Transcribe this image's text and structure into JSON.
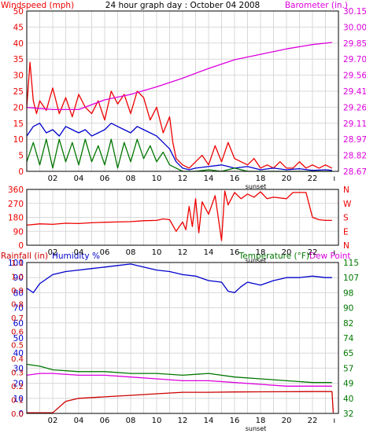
{
  "colors": {
    "red": "#ee0000",
    "blue": "#0000cc",
    "green": "#007700",
    "magenta": "#dd00dd",
    "dark_red": "#cc0000",
    "grid": "#d8d8d8",
    "frame": "#000000"
  },
  "chart_data": [
    {
      "type": "line",
      "title": "24 hour graph day : October 04 2008",
      "y_left_label": "Windspeed (mph)",
      "y_right_label": "Barometer (in.)",
      "y_left_ticks": [
        "0",
        "5",
        "10",
        "15",
        "20",
        "25",
        "30",
        "35",
        "40",
        "45",
        "50"
      ],
      "y_right_ticks": [
        "28.67",
        "28.82",
        "28.97",
        "29.11",
        "29.26",
        "29.41",
        "29.56",
        "29.70",
        "29.85",
        "30.00",
        "30.15"
      ],
      "ylim_left": [
        0,
        50
      ],
      "ylim_right": [
        28.67,
        30.15
      ],
      "x_ticks": [
        "02",
        "04",
        "06",
        "08",
        "10",
        "12",
        "14",
        "16",
        "18",
        "20",
        "22"
      ],
      "x_marker": "sunset",
      "series": [
        {
          "color": "red",
          "axis": "left",
          "x": [
            0,
            0.25,
            0.5,
            0.75,
            1,
            1.5,
            2,
            2.5,
            3,
            3.5,
            4,
            4.5,
            5,
            5.5,
            6,
            6.5,
            7,
            7.5,
            8,
            8.5,
            9,
            9.5,
            10,
            10.5,
            11,
            11.25,
            11.5,
            12,
            12.5,
            13,
            13.5,
            14,
            14.5,
            15,
            15.5,
            16,
            16.5,
            17,
            17.5,
            18,
            18.5,
            19,
            19.5,
            20,
            20.5,
            21,
            21.5,
            22,
            22.5,
            23,
            23.5
          ],
          "y": [
            20,
            34,
            22,
            18,
            22,
            19,
            26,
            18,
            23,
            17,
            24,
            20,
            18,
            22,
            16,
            25,
            21,
            24,
            18,
            25,
            23,
            16,
            20,
            12,
            17,
            9,
            4,
            2,
            1,
            3,
            5,
            2,
            8,
            3,
            9,
            4,
            3,
            2,
            4,
            1,
            2,
            1,
            3,
            1,
            1,
            3,
            1,
            2,
            1,
            2,
            1
          ]
        },
        {
          "color": "blue",
          "axis": "left",
          "x": [
            0,
            0.5,
            1,
            1.5,
            2,
            2.5,
            3,
            3.5,
            4,
            4.5,
            5,
            5.5,
            6,
            6.5,
            7,
            7.5,
            8,
            8.5,
            9,
            9.5,
            10,
            10.5,
            11,
            11.5,
            12,
            12.5,
            13,
            14,
            15,
            16,
            17,
            18,
            19,
            20,
            21,
            22,
            23,
            23.5
          ],
          "y": [
            11,
            14,
            15,
            12,
            13,
            11,
            14,
            13,
            12,
            13,
            11,
            12,
            13,
            15,
            14,
            13,
            12,
            14,
            13,
            12,
            11,
            9,
            7,
            3,
            1,
            0.5,
            1,
            1.5,
            2,
            1,
            1.5,
            0.5,
            1,
            0.5,
            0.8,
            0.3,
            0.5,
            0.3
          ]
        },
        {
          "color": "green",
          "axis": "left",
          "x": [
            0,
            0.5,
            1,
            1.5,
            2,
            2.5,
            3,
            3.5,
            4,
            4.5,
            5,
            5.5,
            6,
            6.5,
            7,
            7.5,
            8,
            8.5,
            9,
            9.5,
            10,
            10.5,
            11,
            11.5,
            12,
            13,
            14,
            15,
            16,
            17,
            18,
            19,
            20,
            21,
            22,
            23,
            23.5
          ],
          "y": [
            3,
            9,
            2,
            10,
            1,
            10,
            3,
            9,
            2,
            10,
            3,
            8,
            2,
            10,
            1,
            9,
            3,
            10,
            4,
            8,
            3,
            6,
            2,
            1,
            0,
            0,
            0.5,
            0,
            1,
            0,
            0,
            0,
            0,
            0,
            0,
            0,
            0
          ]
        },
        {
          "color": "magenta",
          "axis": "right",
          "x": [
            0,
            2,
            4,
            6,
            8,
            10,
            12,
            14,
            16,
            18,
            20,
            22,
            23.5
          ],
          "y": [
            29.26,
            29.24,
            29.24,
            29.33,
            29.38,
            29.45,
            29.53,
            29.62,
            29.7,
            29.75,
            29.8,
            29.84,
            29.86
          ]
        }
      ]
    },
    {
      "type": "line",
      "title": "",
      "y_left_ticks": [
        "0",
        "90",
        "180",
        "270",
        "360"
      ],
      "y_right_ticks": [
        "N",
        "E",
        "S",
        "W",
        "N"
      ],
      "ylim_left": [
        0,
        360
      ],
      "x_ticks": [
        "02",
        "04",
        "06",
        "08",
        "10",
        "12",
        "14",
        "16",
        "18",
        "20",
        "22"
      ],
      "x_marker": "sunset",
      "series": [
        {
          "color": "red",
          "axis": "left",
          "x": [
            0,
            1,
            2,
            3,
            4,
            5,
            6,
            7,
            8,
            9,
            10,
            10.5,
            11,
            11.5,
            12,
            12.25,
            12.5,
            12.75,
            13,
            13.25,
            13.5,
            14,
            14.5,
            15,
            15.25,
            15.5,
            16,
            16.5,
            17,
            17.5,
            18,
            18.5,
            19,
            20,
            20.5,
            21,
            21.5,
            22,
            22.5,
            23,
            23.5
          ],
          "y": [
            130,
            138,
            135,
            142,
            140,
            145,
            148,
            150,
            152,
            158,
            160,
            170,
            165,
            90,
            150,
            100,
            250,
            120,
            300,
            80,
            280,
            200,
            320,
            30,
            350,
            260,
            340,
            300,
            330,
            310,
            345,
            300,
            310,
            300,
            340,
            340,
            340,
            180,
            165,
            160,
            160
          ]
        }
      ]
    },
    {
      "type": "line",
      "title": "",
      "y_left_label": "Rainfall (in)",
      "y_left2_label": "Humidity %",
      "y_right_label": "Temperature (°F)",
      "y_right2_label": "Dew Point",
      "y_left_ticks": [
        "0",
        "10",
        "20",
        "30",
        "40",
        "50",
        "60",
        "70",
        "80",
        "90",
        "100"
      ],
      "y_left_sub_ticks": [
        "0.0",
        "0.1",
        "0.2",
        "0.3",
        "0.4",
        "0.5",
        "0.6",
        "0.7",
        "0.8",
        "0.9",
        "1.0",
        "1.1"
      ],
      "y_right_ticks": [
        "32",
        "40",
        "49",
        "57",
        "65",
        "74",
        "82",
        "90",
        "98",
        "107",
        "115"
      ],
      "ylim_left": [
        0,
        100
      ],
      "ylim_right": [
        32,
        115
      ],
      "x_ticks": [
        "02",
        "04",
        "06",
        "08",
        "10",
        "12",
        "14",
        "16",
        "18",
        "20",
        "22"
      ],
      "x_marker": "sunset",
      "series": [
        {
          "color": "blue",
          "axis": "left",
          "x": [
            0,
            0.5,
            1,
            2,
            3,
            4,
            5,
            6,
            7,
            8,
            9,
            10,
            11,
            12,
            13,
            14,
            15,
            15.5,
            16,
            16.5,
            17,
            18,
            19,
            20,
            21,
            22,
            23,
            23.5
          ],
          "y": [
            83,
            80,
            86,
            92,
            94,
            95,
            96,
            97,
            98,
            99,
            97,
            95,
            94,
            92,
            91,
            88,
            87,
            81,
            80,
            84,
            87,
            85,
            88,
            90,
            90,
            91,
            90,
            90
          ]
        },
        {
          "color": "green",
          "axis": "right",
          "x": [
            0,
            1,
            2,
            4,
            6,
            8,
            10,
            12,
            14,
            16,
            18,
            20,
            22,
            23.5
          ],
          "y": [
            59,
            58,
            56,
            55,
            55,
            54,
            54,
            53,
            54,
            52,
            51,
            50,
            49,
            49
          ]
        },
        {
          "color": "magenta",
          "axis": "right",
          "x": [
            0,
            1,
            2,
            4,
            6,
            8,
            10,
            12,
            14,
            16,
            18,
            20,
            22,
            23.5
          ],
          "y": [
            53,
            54,
            54,
            53,
            53,
            52,
            51,
            50,
            50,
            49,
            48,
            47,
            47,
            47
          ]
        },
        {
          "color": "dark_red",
          "axis": "left",
          "x": [
            0,
            2,
            3,
            4,
            6,
            8,
            10,
            12,
            14,
            16,
            18,
            20,
            22,
            23.5,
            23.6
          ],
          "y": [
            0.4,
            0.4,
            8,
            10,
            11,
            12,
            13,
            14,
            14,
            14.2,
            14.3,
            14.4,
            14.5,
            14.5,
            0.4
          ]
        }
      ]
    }
  ]
}
